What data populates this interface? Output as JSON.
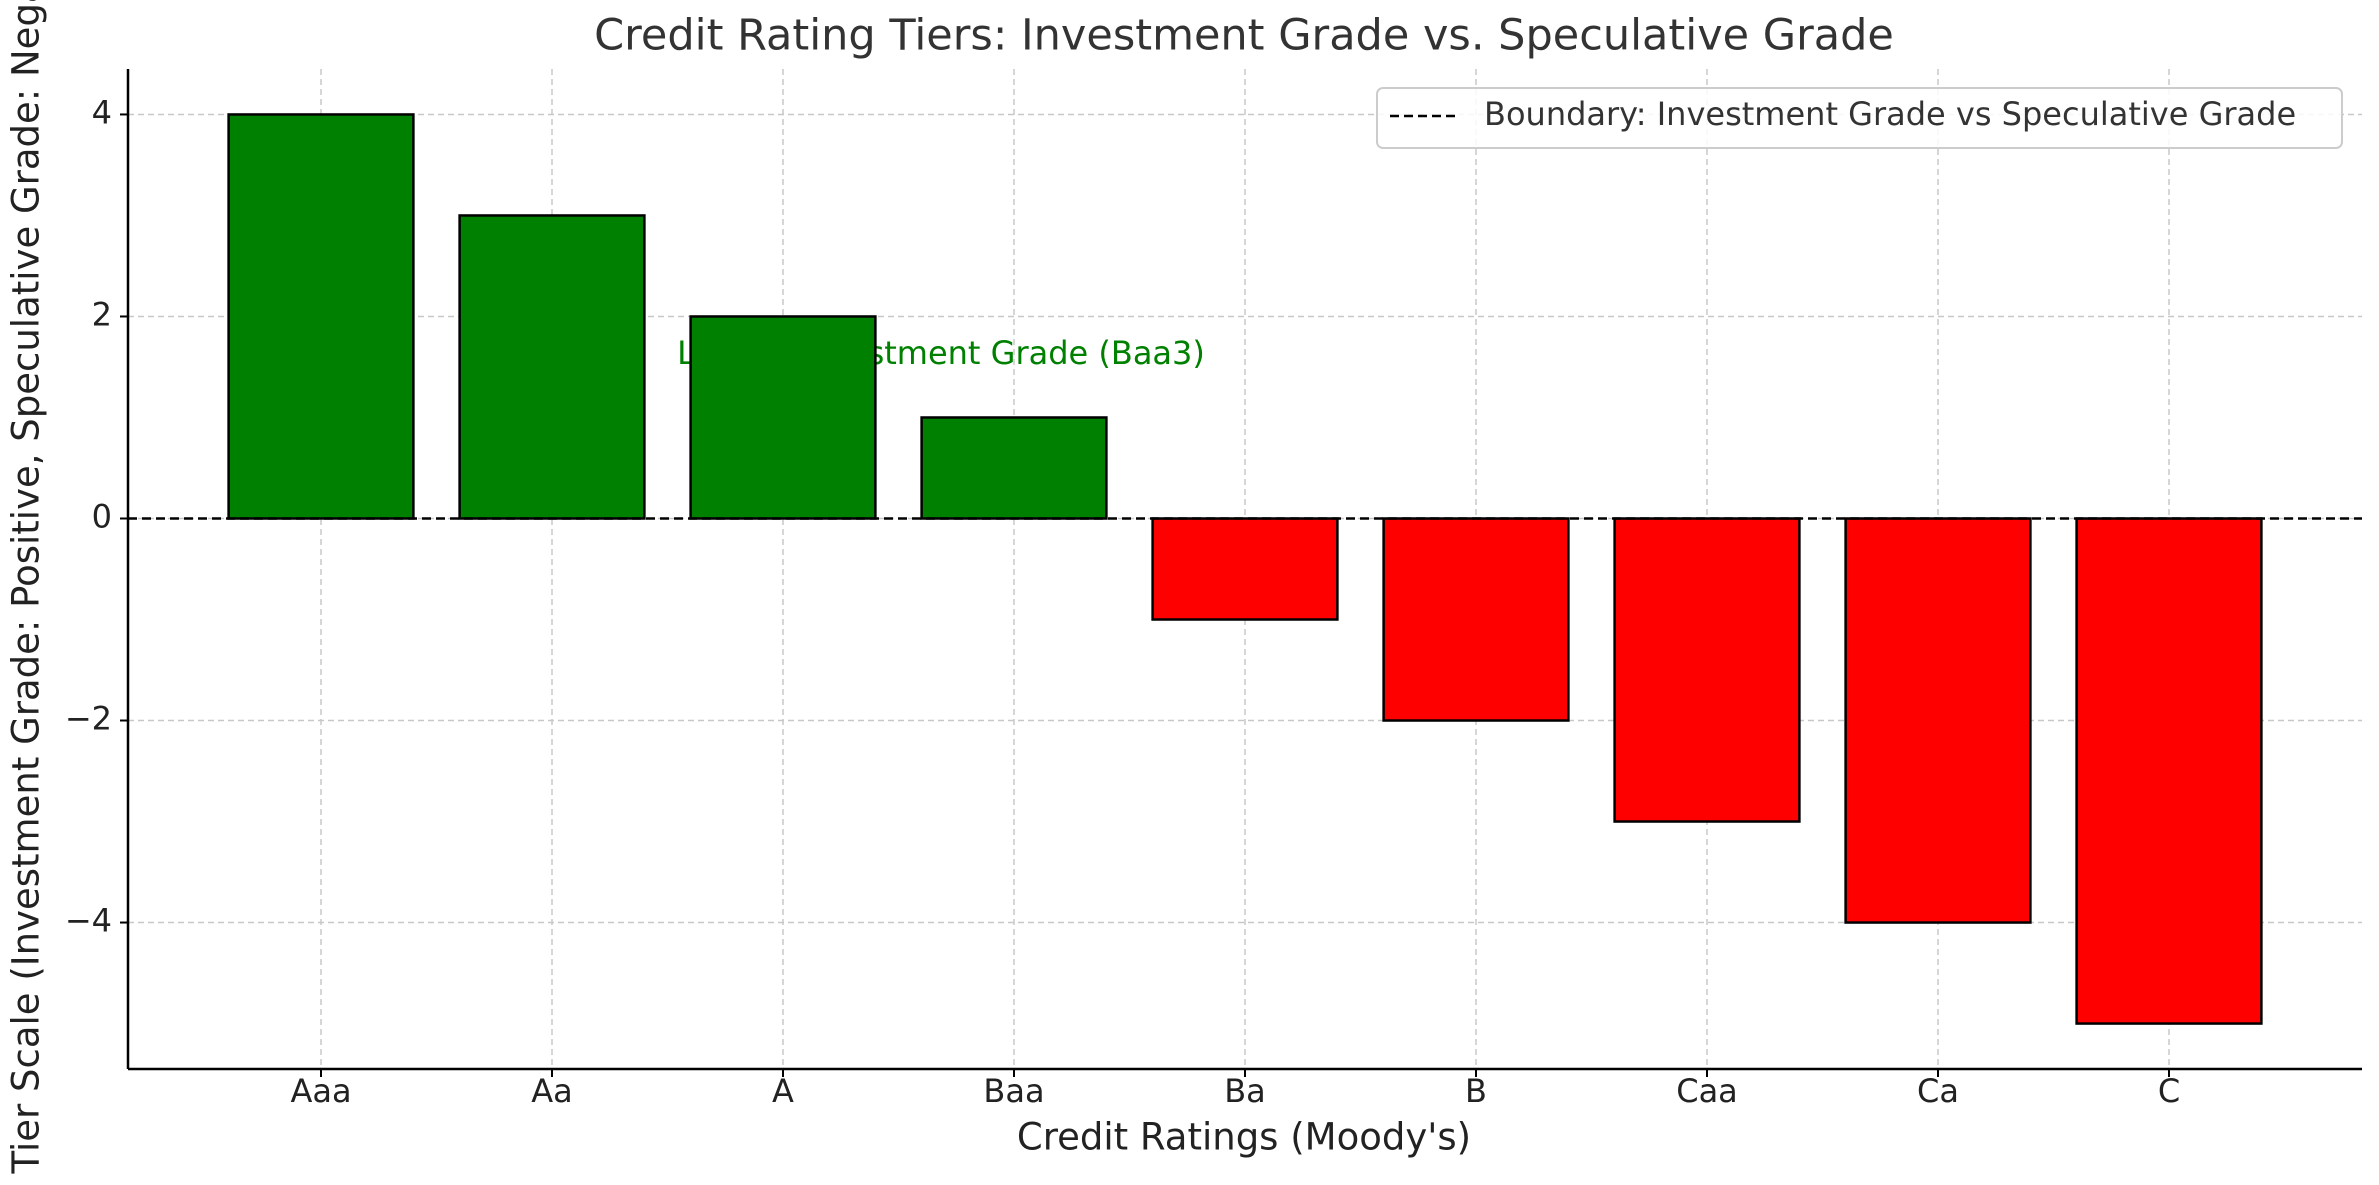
{
  "chart_data": {
    "type": "bar",
    "title": "Credit Rating Tiers: Investment Grade vs. Speculative Grade",
    "xlabel": "Credit Ratings (Moody's)",
    "ylabel": "Tier Scale (Investment Grade: Positive, Speculative Grade: Negative)",
    "categories": [
      "Aaa",
      "Aa",
      "A",
      "Baa",
      "Ba",
      "B",
      "Caa",
      "Ca",
      "C"
    ],
    "values": [
      4,
      3,
      2,
      1,
      -1,
      -2,
      -3,
      -4,
      -5
    ],
    "bar_colors": [
      "#008000",
      "#008000",
      "#008000",
      "#008000",
      "#ff0000",
      "#ff0000",
      "#ff0000",
      "#ff0000",
      "#ff0000"
    ],
    "ylim": [
      -5.45,
      4.45
    ],
    "yticks": [
      4,
      2,
      0,
      -2,
      -4
    ],
    "ytick_labels": [
      "4",
      "2",
      "0",
      "−2",
      "−4"
    ],
    "grid": true,
    "boundary_line": {
      "y": 0,
      "style": "dashed",
      "color": "#000000",
      "label": "Boundary: Investment Grade vs Speculative Grade"
    },
    "annotation": {
      "text": "Lowest Investment Grade (Baa3)",
      "category": "Baa",
      "y": 1.6,
      "color": "#008000"
    },
    "legend": {
      "placement": "top-right",
      "entries": [
        "Boundary: Investment Grade vs Speculative Grade"
      ]
    }
  }
}
